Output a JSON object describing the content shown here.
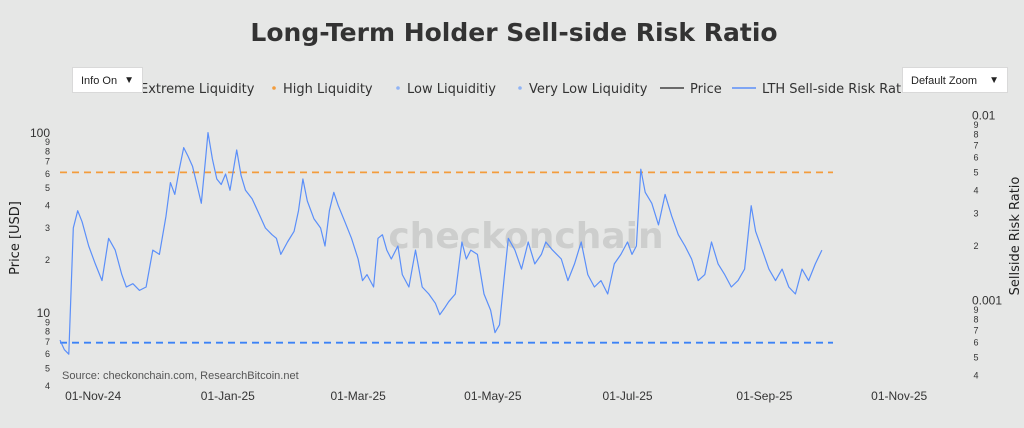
{
  "controls": {
    "info_label": "Info On",
    "zoom_label": "Default Zoom",
    "dropdown_arrow": "▼"
  },
  "watermark": "checkonchain",
  "source": "Source: checkonchain.com, ResearchBitcoin.net",
  "colors": {
    "background": "#e6e7e6",
    "series_line": "#5b8ff9",
    "high_liquidity": "#f39c3c",
    "low_liquidity_line": "#3b82f6",
    "extreme_liquidity": "#e15b5b",
    "very_low_liquidity": "#8fb3f5",
    "price": "#404040",
    "grid": "#cfd0cf"
  },
  "chart_data": {
    "type": "line",
    "title": "Long-Term Holder Sell-side Risk Ratio",
    "ylabel_left": "Price [USD]",
    "ylabel_right": "Sellside Risk Ratio",
    "yscale": "log",
    "x_ticks": [
      "01-Nov-24",
      "01-Jan-25",
      "01-Mar-25",
      "01-May-25",
      "01-Jul-25",
      "01-Sep-25",
      "01-Nov-25"
    ],
    "x_range": [
      "2024-10-17",
      "2025-11-05"
    ],
    "y_left_range": [
      4,
      150
    ],
    "y_left_ticks": [
      {
        "v": 4,
        "t": "4"
      },
      {
        "v": 5,
        "t": "5"
      },
      {
        "v": 6,
        "t": "6"
      },
      {
        "v": 7,
        "t": "7"
      },
      {
        "v": 8,
        "t": "8"
      },
      {
        "v": 9,
        "t": "9"
      },
      {
        "v": 10,
        "t": "10"
      },
      {
        "v": 20,
        "t": "2"
      },
      {
        "v": 30,
        "t": "3"
      },
      {
        "v": 40,
        "t": "4"
      },
      {
        "v": 50,
        "t": "5"
      },
      {
        "v": 60,
        "t": "6"
      },
      {
        "v": 70,
        "t": "7"
      },
      {
        "v": 80,
        "t": "8"
      },
      {
        "v": 90,
        "t": "9"
      },
      {
        "v": 100,
        "t": "100"
      }
    ],
    "y_right_range": [
      0.00035,
      0.012
    ],
    "y_right_ticks": [
      {
        "v": 0.0004,
        "t": "4"
      },
      {
        "v": 0.0005,
        "t": "5"
      },
      {
        "v": 0.0006,
        "t": "6"
      },
      {
        "v": 0.0007,
        "t": "7"
      },
      {
        "v": 0.0008,
        "t": "8"
      },
      {
        "v": 0.0009,
        "t": "9"
      },
      {
        "v": 0.001,
        "t": "0.001"
      },
      {
        "v": 0.002,
        "t": "2"
      },
      {
        "v": 0.003,
        "t": "3"
      },
      {
        "v": 0.004,
        "t": "4"
      },
      {
        "v": 0.005,
        "t": "5"
      },
      {
        "v": 0.006,
        "t": "6"
      },
      {
        "v": 0.007,
        "t": "7"
      },
      {
        "v": 0.008,
        "t": "8"
      },
      {
        "v": 0.009,
        "t": "9"
      },
      {
        "v": 0.01,
        "t": "0.01"
      }
    ],
    "thresholds": [
      {
        "name": "High Liquidity",
        "value": 0.005,
        "style": "dashed"
      },
      {
        "name": "Low Liquiditiy",
        "value": 0.0006,
        "style": "dashed"
      }
    ],
    "legend": [
      {
        "name": "Extreme Liquidity",
        "type": "dot"
      },
      {
        "name": "High Liquidity",
        "type": "dot"
      },
      {
        "name": "Low Liquiditiy",
        "type": "dot"
      },
      {
        "name": "Very Low Liquidity",
        "type": "dot"
      },
      {
        "name": "Price",
        "type": "line"
      },
      {
        "name": "LTH Sell-side Risk Ratio",
        "type": "line"
      }
    ],
    "legend_placement": "top",
    "grid": false,
    "series": [
      {
        "name": "LTH Sell-side Risk Ratio",
        "points": [
          [
            "2024-10-17",
            0.00062
          ],
          [
            "2024-10-19",
            0.00055
          ],
          [
            "2024-10-21",
            0.00052
          ],
          [
            "2024-10-23",
            0.0025
          ],
          [
            "2024-10-25",
            0.0031
          ],
          [
            "2024-10-27",
            0.0027
          ],
          [
            "2024-10-30",
            0.002
          ],
          [
            "2024-11-02",
            0.0016
          ],
          [
            "2024-11-05",
            0.0013
          ],
          [
            "2024-11-08",
            0.0022
          ],
          [
            "2024-11-11",
            0.0019
          ],
          [
            "2024-11-14",
            0.0014
          ],
          [
            "2024-11-16",
            0.0012
          ],
          [
            "2024-11-19",
            0.00125
          ],
          [
            "2024-11-22",
            0.00115
          ],
          [
            "2024-11-25",
            0.0012
          ],
          [
            "2024-11-28",
            0.0019
          ],
          [
            "2024-12-01",
            0.0018
          ],
          [
            "2024-12-04",
            0.0029
          ],
          [
            "2024-12-06",
            0.0044
          ],
          [
            "2024-12-08",
            0.0038
          ],
          [
            "2024-12-10",
            0.0052
          ],
          [
            "2024-12-12",
            0.0068
          ],
          [
            "2024-12-14",
            0.0061
          ],
          [
            "2024-12-16",
            0.0054
          ],
          [
            "2024-12-18",
            0.0043
          ],
          [
            "2024-12-20",
            0.0034
          ],
          [
            "2024-12-22",
            0.0061
          ],
          [
            "2024-12-23",
            0.0082
          ],
          [
            "2024-12-25",
            0.0059
          ],
          [
            "2024-12-27",
            0.0046
          ],
          [
            "2024-12-29",
            0.0043
          ],
          [
            "2024-12-31",
            0.0049
          ],
          [
            "2025-01-02",
            0.004
          ],
          [
            "2025-01-05",
            0.0066
          ],
          [
            "2025-01-07",
            0.0048
          ],
          [
            "2025-01-09",
            0.004
          ],
          [
            "2025-01-12",
            0.0036
          ],
          [
            "2025-01-15",
            0.003
          ],
          [
            "2025-01-18",
            0.0025
          ],
          [
            "2025-01-21",
            0.0023
          ],
          [
            "2025-01-23",
            0.0022
          ],
          [
            "2025-01-25",
            0.0018
          ],
          [
            "2025-01-28",
            0.0021
          ],
          [
            "2025-01-31",
            0.0024
          ],
          [
            "2025-02-02",
            0.0031
          ],
          [
            "2025-02-04",
            0.0046
          ],
          [
            "2025-02-06",
            0.0035
          ],
          [
            "2025-02-09",
            0.0028
          ],
          [
            "2025-02-12",
            0.0025
          ],
          [
            "2025-02-14",
            0.002
          ],
          [
            "2025-02-16",
            0.0031
          ],
          [
            "2025-02-18",
            0.0039
          ],
          [
            "2025-02-20",
            0.0033
          ],
          [
            "2025-02-23",
            0.0027
          ],
          [
            "2025-02-26",
            0.0022
          ],
          [
            "2025-03-01",
            0.0017
          ],
          [
            "2025-03-03",
            0.0013
          ],
          [
            "2025-03-05",
            0.0014
          ],
          [
            "2025-03-08",
            0.0012
          ],
          [
            "2025-03-10",
            0.0022
          ],
          [
            "2025-03-12",
            0.0023
          ],
          [
            "2025-03-14",
            0.0019
          ],
          [
            "2025-03-16",
            0.0017
          ],
          [
            "2025-03-19",
            0.002
          ],
          [
            "2025-03-21",
            0.0014
          ],
          [
            "2025-03-24",
            0.0012
          ],
          [
            "2025-03-27",
            0.0019
          ],
          [
            "2025-03-30",
            0.0012
          ],
          [
            "2025-04-02",
            0.0011
          ],
          [
            "2025-04-05",
            0.00098
          ],
          [
            "2025-04-07",
            0.00085
          ],
          [
            "2025-04-09",
            0.00092
          ],
          [
            "2025-04-11",
            0.001
          ],
          [
            "2025-04-14",
            0.0011
          ],
          [
            "2025-04-17",
            0.0021
          ],
          [
            "2025-04-19",
            0.0017
          ],
          [
            "2025-04-21",
            0.0019
          ],
          [
            "2025-04-24",
            0.0018
          ],
          [
            "2025-04-27",
            0.0011
          ],
          [
            "2025-04-30",
            0.0009
          ],
          [
            "2025-05-02",
            0.00068
          ],
          [
            "2025-05-04",
            0.00075
          ],
          [
            "2025-05-06",
            0.0013
          ],
          [
            "2025-05-08",
            0.0022
          ],
          [
            "2025-05-11",
            0.0019
          ],
          [
            "2025-05-14",
            0.0015
          ],
          [
            "2025-05-17",
            0.0021
          ],
          [
            "2025-05-20",
            0.0016
          ],
          [
            "2025-05-23",
            0.0018
          ],
          [
            "2025-05-25",
            0.0021
          ],
          [
            "2025-05-28",
            0.0019
          ],
          [
            "2025-06-01",
            0.0017
          ],
          [
            "2025-06-04",
            0.0013
          ],
          [
            "2025-06-07",
            0.0016
          ],
          [
            "2025-06-10",
            0.0021
          ],
          [
            "2025-06-13",
            0.0014
          ],
          [
            "2025-06-16",
            0.0012
          ],
          [
            "2025-06-19",
            0.0013
          ],
          [
            "2025-06-22",
            0.0011
          ],
          [
            "2025-06-25",
            0.0016
          ],
          [
            "2025-06-28",
            0.0018
          ],
          [
            "2025-07-01",
            0.0021
          ],
          [
            "2025-07-03",
            0.0018
          ],
          [
            "2025-07-05",
            0.002
          ],
          [
            "2025-07-07",
            0.0052
          ],
          [
            "2025-07-09",
            0.0039
          ],
          [
            "2025-07-12",
            0.0034
          ],
          [
            "2025-07-15",
            0.0026
          ],
          [
            "2025-07-18",
            0.0038
          ],
          [
            "2025-07-21",
            0.0029
          ],
          [
            "2025-07-24",
            0.0023
          ],
          [
            "2025-07-27",
            0.002
          ],
          [
            "2025-07-30",
            0.0017
          ],
          [
            "2025-08-02",
            0.0013
          ],
          [
            "2025-08-05",
            0.0014
          ],
          [
            "2025-08-08",
            0.0021
          ],
          [
            "2025-08-11",
            0.0016
          ],
          [
            "2025-08-14",
            0.0014
          ],
          [
            "2025-08-17",
            0.0012
          ],
          [
            "2025-08-20",
            0.0013
          ],
          [
            "2025-08-23",
            0.0015
          ],
          [
            "2025-08-26",
            0.0033
          ],
          [
            "2025-08-28",
            0.0024
          ],
          [
            "2025-08-31",
            0.0019
          ],
          [
            "2025-09-03",
            0.0015
          ],
          [
            "2025-09-06",
            0.0013
          ],
          [
            "2025-09-09",
            0.0015
          ],
          [
            "2025-09-12",
            0.0012
          ],
          [
            "2025-09-15",
            0.0011
          ],
          [
            "2025-09-18",
            0.0015
          ],
          [
            "2025-09-21",
            0.0013
          ],
          [
            "2025-09-24",
            0.0016
          ],
          [
            "2025-09-27",
            0.0019
          ]
        ]
      }
    ]
  }
}
